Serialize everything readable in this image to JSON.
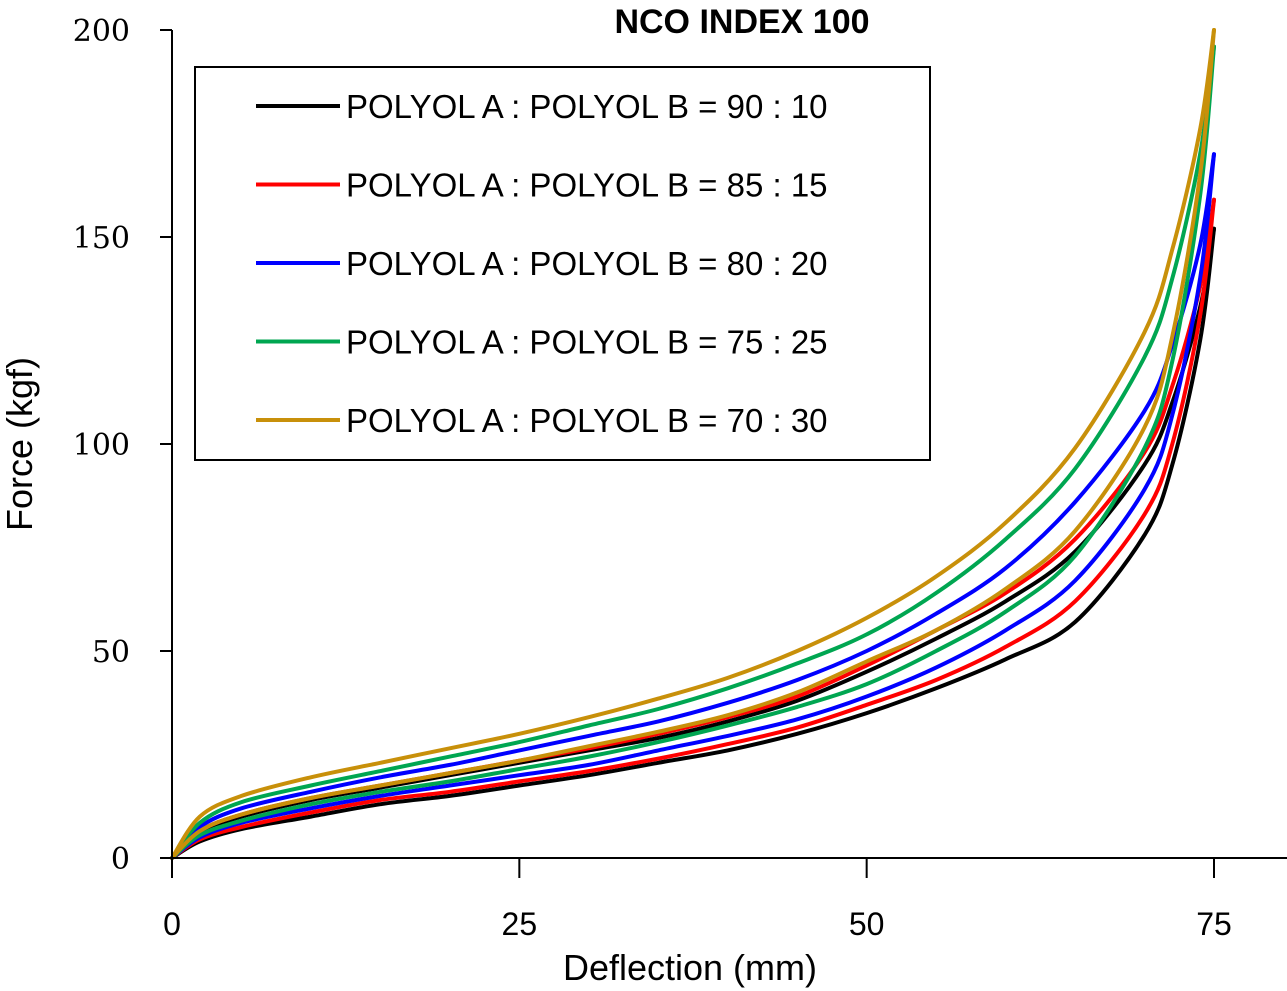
{
  "chart_data": {
    "type": "line",
    "title": "NCO INDEX 100",
    "xlabel": "Deflection (mm)",
    "ylabel": "Force (kgf)",
    "xlim": [
      0,
      80
    ],
    "ylim": [
      0,
      200
    ],
    "xticks": [
      0,
      25,
      50,
      75
    ],
    "yticks": [
      0,
      50,
      100,
      150,
      200
    ],
    "grid": false,
    "legend_position": "top-left",
    "x": [
      0,
      2,
      5,
      10,
      15,
      20,
      25,
      30,
      35,
      40,
      45,
      50,
      55,
      60,
      65,
      70,
      72,
      74,
      75
    ],
    "series": [
      {
        "name": "POLYOL A : POLYOL B = 90 : 10",
        "color": "#000000",
        "loading": [
          0,
          6,
          10,
          14,
          17,
          20,
          23,
          26,
          29,
          33,
          38,
          45,
          53,
          62,
          74,
          95,
          110,
          133,
          152
        ],
        "unloading": [
          0,
          4,
          7,
          10,
          13,
          15,
          17.5,
          20,
          23,
          26,
          30,
          35,
          41,
          48,
          57,
          78,
          95,
          125,
          152
        ]
      },
      {
        "name": "POLYOL A : POLYOL B = 85 : 15",
        "color": "#ff0000",
        "loading": [
          0,
          6.5,
          10.5,
          14.5,
          17.5,
          20.5,
          23.5,
          26.5,
          30,
          34,
          39,
          46.5,
          55,
          64,
          77,
          98,
          114,
          138,
          159
        ],
        "unloading": [
          0,
          4.5,
          7.5,
          11,
          14,
          16,
          18.5,
          21,
          24,
          27.5,
          31.5,
          37,
          43,
          51,
          62,
          83,
          100,
          131,
          159
        ]
      },
      {
        "name": "POLYOL A : POLYOL B = 80 : 20",
        "color": "#0000ff",
        "loading": [
          0,
          7.5,
          12,
          16,
          19.5,
          22.5,
          26,
          29.5,
          33,
          37.5,
          43,
          50,
          59,
          70,
          86,
          108,
          124,
          148,
          170
        ],
        "unloading": [
          0,
          5,
          8.5,
          12,
          15,
          17.5,
          20,
          22.5,
          26,
          29.5,
          33.5,
          39,
          46,
          55,
          67,
          89,
          107,
          140,
          170
        ]
      },
      {
        "name": "POLYOL A : POLYOL B = 75 : 25",
        "color": "#00a651",
        "loading": [
          0,
          8.5,
          13.5,
          17.5,
          21,
          24.5,
          28,
          32,
          36,
          41,
          47,
          54,
          64,
          77,
          94,
          121,
          140,
          170,
          196
        ],
        "unloading": [
          0,
          5.5,
          9,
          13,
          16,
          18.5,
          21.5,
          24.5,
          28,
          32,
          36.5,
          42,
          50,
          59.5,
          73,
          99,
          120,
          160,
          196
        ]
      },
      {
        "name": "POLYOL A : POLYOL B = 70 : 30",
        "color": "#c8900a",
        "loading": [
          0,
          10,
          15,
          19.5,
          23,
          26.5,
          30,
          34,
          38.5,
          43.5,
          50,
          58,
          68,
          81,
          99,
          127,
          147,
          176,
          200
        ],
        "unloading": [
          0,
          6.5,
          10.5,
          14.5,
          17.5,
          20.5,
          23.5,
          27,
          30.5,
          34.5,
          40,
          47.5,
          55,
          65,
          79,
          104,
          126,
          165,
          200
        ]
      }
    ]
  }
}
